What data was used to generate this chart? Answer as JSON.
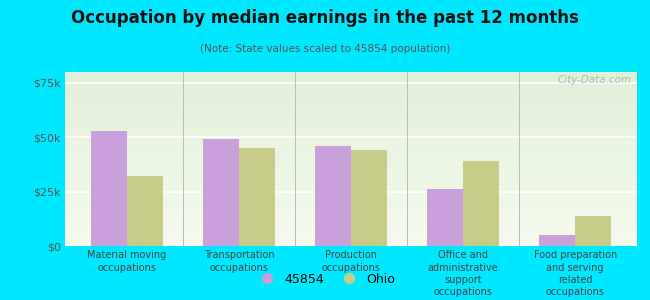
{
  "title": "Occupation by median earnings in the past 12 months",
  "subtitle": "(Note: State values scaled to 45854 population)",
  "categories": [
    "Material moving\noccupations",
    "Transportation\noccupations",
    "Production\noccupations",
    "Office and\nadministrative\nsupport\noccupations",
    "Food preparation\nand serving\nrelated\noccupations"
  ],
  "values_45854": [
    53000,
    49000,
    46000,
    26000,
    5000
  ],
  "values_ohio": [
    32000,
    45000,
    44000,
    39000,
    14000
  ],
  "color_45854": "#c9a0dc",
  "color_ohio": "#c8cc8a",
  "background_outer": "#00e8ff",
  "background_plot_top": "#e8f5e2",
  "background_plot_bottom": "#f5faee",
  "ylim": [
    0,
    80000
  ],
  "yticks": [
    0,
    25000,
    50000,
    75000
  ],
  "ytick_labels": [
    "$0",
    "$25k",
    "$50k",
    "$75k"
  ],
  "legend_label_1": "45854",
  "legend_label_2": "Ohio",
  "watermark": "City-Data.com"
}
